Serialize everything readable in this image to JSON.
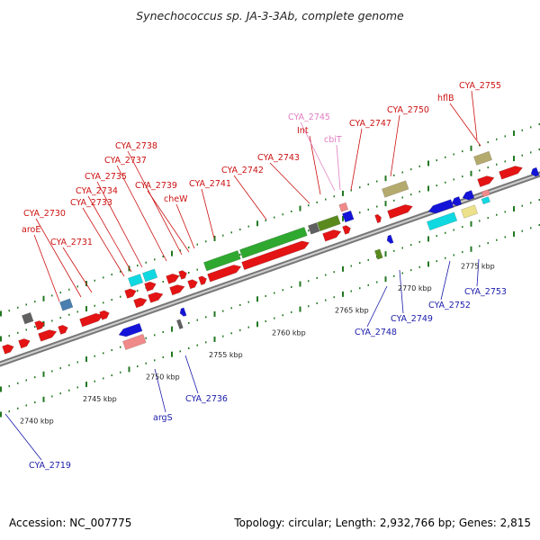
{
  "title": "Synechococcus sp. JA-3-3Ab, complete genome",
  "footer": {
    "accession": "Accession: NC_007775",
    "summary": "Topology: circular; Length: 2,932,766 bp; Genes: 2,815"
  },
  "colors": {
    "backbone": "#9a9a9a",
    "red_gene": "#e41414",
    "blue_gene": "#1414d8",
    "green_gene": "#2fa82f",
    "cyan_gene": "#10d8e0",
    "olive_gene": "#b4aa6e",
    "dark_olive_gene": "#5a8a1e",
    "gray_gene": "#606060",
    "pink_gene": "#f08a8a",
    "label_forward": "#cc1111",
    "label_reverse": "#1a1aaa",
    "label_special": "#e07cc0",
    "tick": "#227722"
  },
  "scale_labels": [
    "2740 kbp",
    "2745 kbp",
    "2750 kbp",
    "2755 kbp",
    "2760 kbp",
    "2765 kbp",
    "2770 kbp",
    "2775 kbp"
  ],
  "forward_labels": [
    "aroE",
    "CYA_2730",
    "CYA_2731",
    "CYA_2733",
    "CYA_2734",
    "CYA_2735",
    "CYA_2737",
    "CYA_2738",
    "CYA_2739",
    "cheW",
    "CYA_2741",
    "CYA_2742",
    "CYA_2743",
    "Int",
    "CYA_2747",
    "CYA_2750",
    "hflB",
    "CYA_2755"
  ],
  "special_labels": [
    "CYA_2745",
    "cbiT"
  ],
  "reverse_labels": [
    "CYA_2719",
    "argS",
    "CYA_2736",
    "CYA_2748",
    "CYA_2749",
    "CYA_2752",
    "CYA_2753"
  ]
}
